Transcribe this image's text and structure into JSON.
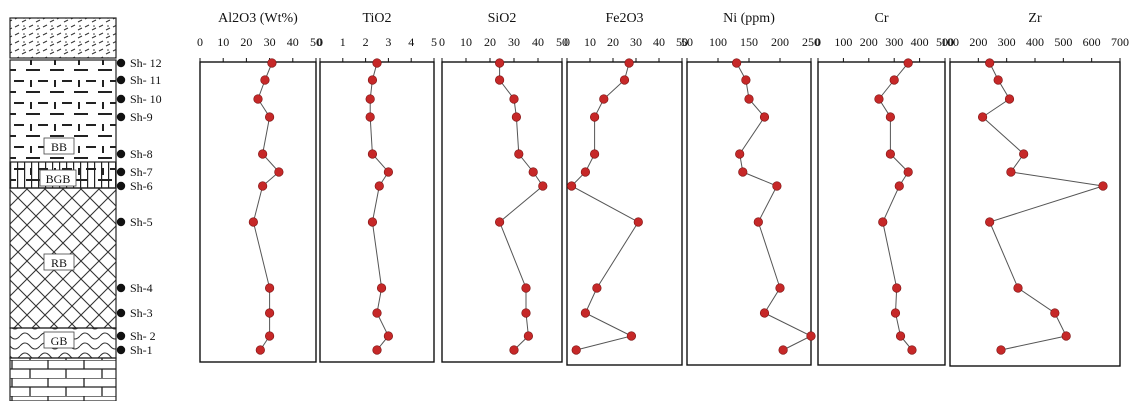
{
  "samples": [
    "Sh-1",
    "Sh- 2",
    "Sh-3",
    "Sh-4",
    "Sh-5",
    "Sh-6",
    "Sh-7",
    "Sh-8",
    "Sh-9",
    "Sh- 10",
    "Sh- 11",
    "Sh- 12"
  ],
  "units": [
    "GB",
    "RB",
    "BGB",
    "BB"
  ],
  "colors": {
    "marker": "#c62828",
    "line": "#555555",
    "frame": "#111111"
  },
  "chart_data": [
    {
      "type": "line",
      "title": "Al2O3 (Wt%)",
      "ticks": [
        "0",
        "10",
        "20",
        "30",
        "40",
        "50"
      ],
      "xlim": [
        0,
        50
      ],
      "categories": [
        "Sh-1",
        "Sh- 2",
        "Sh-3",
        "Sh-4",
        "Sh-5",
        "Sh-6",
        "Sh-7",
        "Sh-8",
        "Sh-9",
        "Sh- 10",
        "Sh- 11",
        "Sh- 12"
      ],
      "values": [
        26,
        30,
        30,
        30,
        23,
        27,
        34,
        27,
        30,
        25,
        28,
        31
      ]
    },
    {
      "type": "line",
      "title": "TiO2",
      "ticks": [
        "0",
        "1",
        "2",
        "3",
        "4",
        "5"
      ],
      "xlim": [
        0,
        5
      ],
      "categories": [
        "Sh-1",
        "Sh- 2",
        "Sh-3",
        "Sh-4",
        "Sh-5",
        "Sh-6",
        "Sh-7",
        "Sh-8",
        "Sh-9",
        "Sh- 10",
        "Sh- 11",
        "Sh- 12"
      ],
      "values": [
        2.5,
        3.0,
        2.5,
        2.7,
        2.3,
        2.6,
        3.0,
        2.3,
        2.2,
        2.2,
        2.3,
        2.5
      ]
    },
    {
      "type": "line",
      "title": "SiO2",
      "ticks": [
        "0",
        "10",
        "20",
        "30",
        "40",
        "50"
      ],
      "xlim": [
        0,
        50
      ],
      "categories": [
        "Sh-1",
        "Sh- 2",
        "Sh-3",
        "Sh-4",
        "Sh-5",
        "Sh-6",
        "Sh-7",
        "Sh-8",
        "Sh-9",
        "Sh- 10",
        "Sh- 11",
        "Sh- 12"
      ],
      "values": [
        30,
        36,
        35,
        35,
        24,
        42,
        38,
        32,
        31,
        30,
        24,
        24
      ]
    },
    {
      "type": "line",
      "title": "Fe2O3",
      "ticks": [
        "0",
        "10",
        "20",
        "30",
        "40",
        "50"
      ],
      "xlim": [
        0,
        50
      ],
      "categories": [
        "Sh-1",
        "Sh- 2",
        "Sh-3",
        "Sh-4",
        "Sh-5",
        "Sh-6",
        "Sh-7",
        "Sh-8",
        "Sh-9",
        "Sh- 10",
        "Sh- 11",
        "Sh- 12"
      ],
      "values": [
        4,
        28,
        8,
        13,
        31,
        2,
        8,
        12,
        12,
        16,
        25,
        27
      ]
    },
    {
      "type": "line",
      "title": "Ni (ppm)",
      "ticks": [
        "50",
        "100",
        "150",
        "200",
        "250"
      ],
      "xlim": [
        50,
        250
      ],
      "categories": [
        "Sh-1",
        "Sh- 2",
        "Sh-3",
        "Sh-4",
        "Sh-5",
        "Sh-6",
        "Sh-7",
        "Sh-8",
        "Sh-9",
        "Sh- 10",
        "Sh- 11",
        "Sh- 12"
      ],
      "values": [
        205,
        250,
        175,
        200,
        165,
        195,
        140,
        135,
        175,
        150,
        145,
        130
      ]
    },
    {
      "type": "line",
      "title": "Cr",
      "ticks": [
        "0",
        "100",
        "200",
        "300",
        "400",
        "500"
      ],
      "xlim": [
        0,
        500
      ],
      "categories": [
        "Sh-1",
        "Sh- 2",
        "Sh-3",
        "Sh-4",
        "Sh-5",
        "Sh-6",
        "Sh-7",
        "Sh-8",
        "Sh-9",
        "Sh- 10",
        "Sh- 11",
        "Sh- 12"
      ],
      "values": [
        370,
        325,
        305,
        310,
        255,
        320,
        355,
        285,
        285,
        240,
        300,
        355
      ]
    },
    {
      "type": "line",
      "title": "Zr",
      "ticks": [
        "100",
        "200",
        "300",
        "400",
        "500",
        "600",
        "700"
      ],
      "xlim": [
        100,
        700
      ],
      "categories": [
        "Sh-1",
        "Sh- 2",
        "Sh-3",
        "Sh-4",
        "Sh-5",
        "Sh-6",
        "Sh-7",
        "Sh-8",
        "Sh-9",
        "Sh- 10",
        "Sh- 11",
        "Sh- 12"
      ],
      "values": [
        280,
        510,
        470,
        340,
        240,
        640,
        315,
        360,
        215,
        310,
        270,
        240
      ]
    }
  ]
}
